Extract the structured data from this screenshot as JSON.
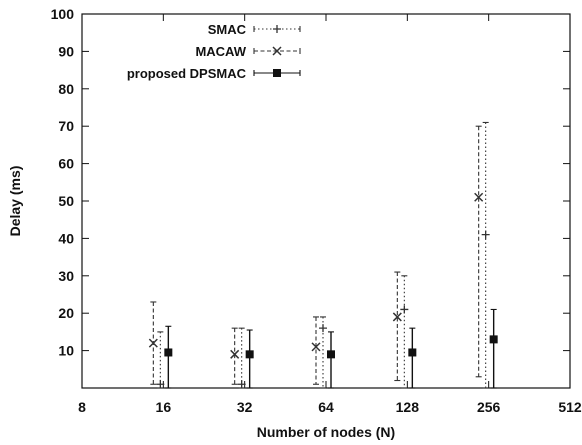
{
  "chart_data": {
    "type": "scatter",
    "subtype": "error-bars",
    "title": "",
    "xlabel": "Number of nodes (N)",
    "ylabel": "Delay (ms)",
    "x_scale": "log2",
    "xlim": [
      8,
      512
    ],
    "ylim": [
      0,
      100
    ],
    "x_ticks": [
      "8",
      "16",
      "32",
      "64",
      "128",
      "256",
      "512"
    ],
    "y_ticks": [
      "10",
      "20",
      "30",
      "40",
      "50",
      "60",
      "70",
      "80",
      "90",
      "100"
    ],
    "grid": false,
    "legend_position": "top-right",
    "series": [
      {
        "name": "SMAC",
        "marker": "plus",
        "line_style": "dotted",
        "color": "#333333",
        "points": [
          {
            "x": 16,
            "y": 1,
            "ymin": 0,
            "ymax": 15
          },
          {
            "x": 32,
            "y": 1,
            "ymin": 0,
            "ymax": 16
          },
          {
            "x": 64,
            "y": 16,
            "ymin": 0,
            "ymax": 19
          },
          {
            "x": 128,
            "y": 21,
            "ymin": 0,
            "ymax": 30
          },
          {
            "x": 256,
            "y": 41,
            "ymin": 0,
            "ymax": 71
          }
        ]
      },
      {
        "name": "MACAW",
        "marker": "cross",
        "line_style": "dashed",
        "color": "#333333",
        "points": [
          {
            "x": 16,
            "y": 12,
            "ymin": 1,
            "ymax": 23
          },
          {
            "x": 32,
            "y": 9,
            "ymin": 1,
            "ymax": 16
          },
          {
            "x": 64,
            "y": 11,
            "ymin": 1,
            "ymax": 19
          },
          {
            "x": 128,
            "y": 19,
            "ymin": 2,
            "ymax": 31
          },
          {
            "x": 256,
            "y": 51,
            "ymin": 3,
            "ymax": 70
          }
        ]
      },
      {
        "name": "proposed DPSMAC",
        "marker": "square",
        "line_style": "solid",
        "color": "#111111",
        "points": [
          {
            "x": 16,
            "y": 9.5,
            "ymin": 0,
            "ymax": 16.5
          },
          {
            "x": 32,
            "y": 9,
            "ymin": 0,
            "ymax": 15.5
          },
          {
            "x": 64,
            "y": 9,
            "ymin": 0,
            "ymax": 15
          },
          {
            "x": 128,
            "y": 9.5,
            "ymin": 0,
            "ymax": 16
          },
          {
            "x": 256,
            "y": 13,
            "ymin": 0,
            "ymax": 21
          }
        ]
      }
    ]
  }
}
